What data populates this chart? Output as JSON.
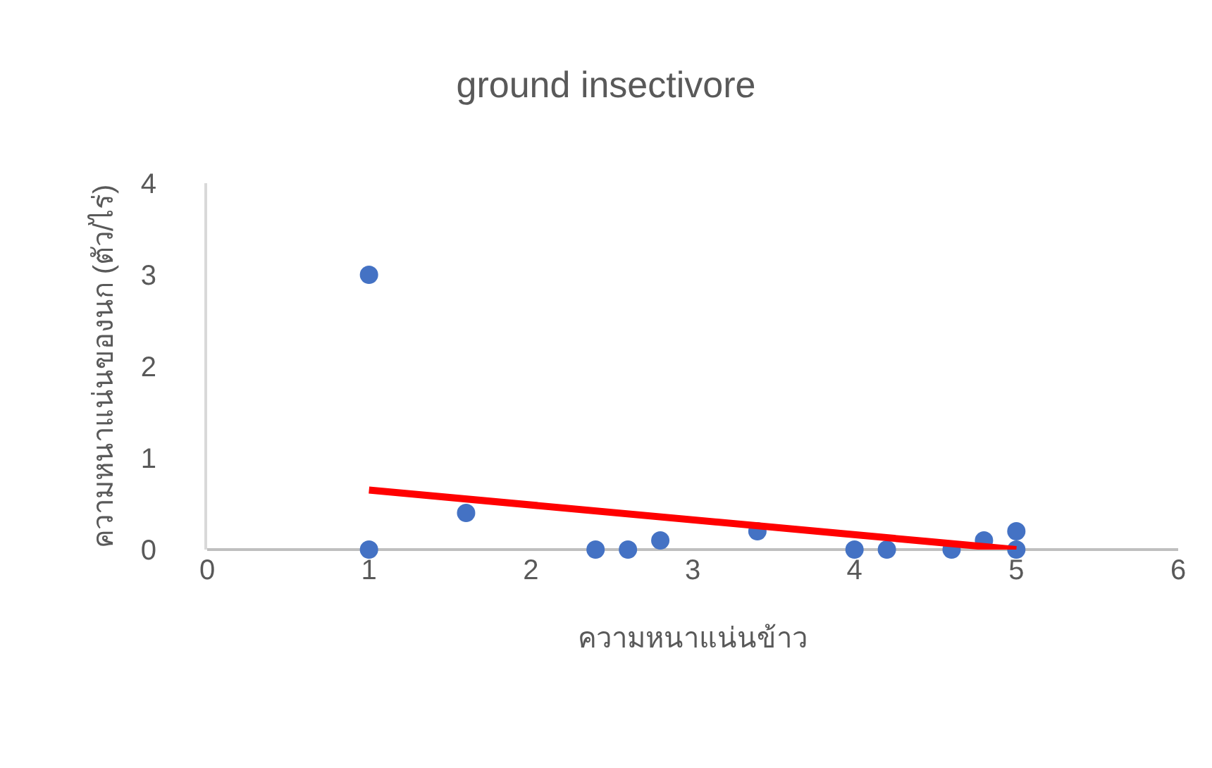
{
  "chart_data": {
    "type": "scatter",
    "title": "ground insectivore",
    "xlabel": "ความหนาแน่นข้าว",
    "ylabel": "ความหนาแน่นของนก (ตัว/ไร่)",
    "xlim": [
      0,
      6
    ],
    "xticks": [
      0,
      1,
      2,
      3,
      4,
      5,
      6
    ],
    "ylim": [
      0,
      4
    ],
    "yticks": [
      0,
      1,
      2,
      3,
      4
    ],
    "grid": false,
    "marker": "circle",
    "series": [
      {
        "color": "#4472c4",
        "x": [
          1,
          1,
          1.6,
          2.4,
          2.6,
          2.8,
          3.4,
          4,
          4.2,
          4.6,
          4.8,
          5,
          5
        ],
        "values": [
          3,
          0,
          0.4,
          0,
          0,
          0.1,
          0.2,
          0,
          0,
          0,
          0.1,
          0.2,
          0
        ]
      },
      {
        "type": "line",
        "color": "#ff0000",
        "x": [
          1,
          5
        ],
        "values": [
          0.65,
          0
        ],
        "line_style": "solid",
        "marker": "none"
      }
    ]
  }
}
